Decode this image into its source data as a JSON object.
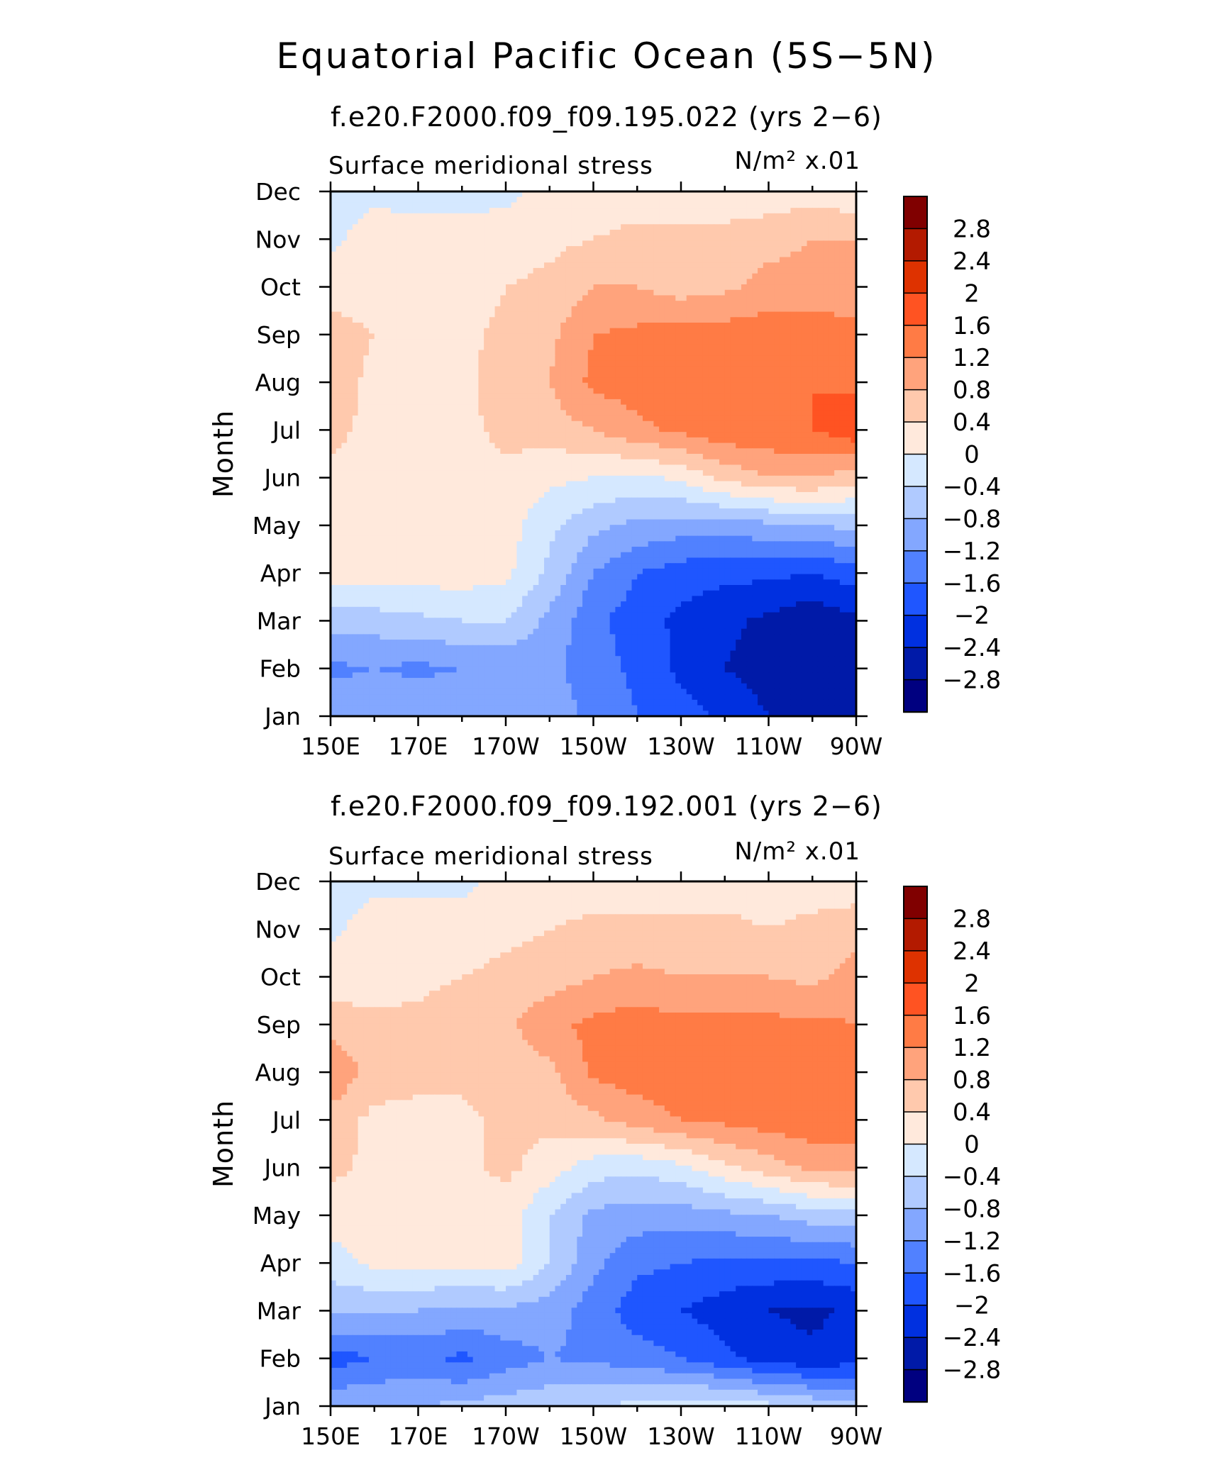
{
  "figure": {
    "title": "Equatorial Pacific Ocean (5S−5N)"
  },
  "colorbar": {
    "labels": [
      "2.8",
      "2.4",
      "2",
      "1.6",
      "1.2",
      "0.8",
      "0.4",
      "0",
      "−0.4",
      "−0.8",
      "−1.2",
      "−1.6",
      "−2",
      "−2.4",
      "−2.8"
    ],
    "colors": [
      "#800000",
      "#b31a00",
      "#de3200",
      "#ff5322",
      "#ff7b45",
      "#ffa37c",
      "#ffc9ad",
      "#ffe9dc",
      "#d5e8ff",
      "#b0caff",
      "#83a7ff",
      "#5181ff",
      "#1f56ff",
      "#0030e0",
      "#001aa8",
      "#000080"
    ]
  },
  "chart_data": [
    {
      "type": "heatmap",
      "title": "f.e20.F2000.f09_f09.195.022 (yrs 2−6)",
      "subtitle_left": "Surface meridional stress",
      "subtitle_right": "N/m² x.01",
      "xlabel": "",
      "ylabel": "Month",
      "x_ticks": [
        "150E",
        "170E",
        "170W",
        "150W",
        "130W",
        "110W",
        "90W"
      ],
      "y_ticks": [
        "Jan",
        "Feb",
        "Mar",
        "Apr",
        "May",
        "Jun",
        "Jul",
        "Aug",
        "Sep",
        "Oct",
        "Nov",
        "Dec"
      ],
      "x": [
        150,
        160,
        170,
        180,
        190,
        200,
        210,
        220,
        230,
        240,
        250,
        260,
        270
      ],
      "y": [
        "Jan",
        "Feb",
        "Mar",
        "Apr",
        "May",
        "Jun",
        "Jul",
        "Aug",
        "Sep",
        "Oct",
        "Nov",
        "Dec"
      ],
      "z": [
        [
          -0.9,
          -0.9,
          -0.8,
          -0.8,
          -0.8,
          -1.0,
          -1.3,
          -1.6,
          -1.8,
          -2.1,
          -2.4,
          -2.6,
          -2.6
        ],
        [
          -1.3,
          -1.2,
          -1.3,
          -1.2,
          -1.1,
          -1.1,
          -1.4,
          -1.7,
          -2.1,
          -2.4,
          -2.6,
          -2.8,
          -2.8
        ],
        [
          -0.6,
          -0.6,
          -0.5,
          -0.4,
          -0.4,
          -0.9,
          -1.5,
          -1.8,
          -2.1,
          -2.3,
          -2.5,
          -2.7,
          -2.5
        ],
        [
          0.2,
          0.2,
          0.2,
          0.2,
          0.1,
          -0.5,
          -1.2,
          -1.6,
          -1.8,
          -1.9,
          -1.9,
          -2.0,
          -1.8
        ],
        [
          0.2,
          0.2,
          0.2,
          0.2,
          0.2,
          -0.3,
          -0.7,
          -0.9,
          -1.0,
          -1.0,
          -0.9,
          -0.8,
          -0.7
        ],
        [
          0.3,
          0.2,
          0.2,
          0.2,
          0.3,
          0.1,
          0.0,
          -0.1,
          0.1,
          0.5,
          0.8,
          0.8,
          0.6
        ],
        [
          0.5,
          0.3,
          0.3,
          0.3,
          0.5,
          0.6,
          0.8,
          1.1,
          1.3,
          1.5,
          1.5,
          1.6,
          1.9
        ],
        [
          0.6,
          0.3,
          0.3,
          0.3,
          0.6,
          0.8,
          1.3,
          1.4,
          1.5,
          1.5,
          1.6,
          1.6,
          1.5
        ],
        [
          0.6,
          0.4,
          0.3,
          0.3,
          0.5,
          0.7,
          1.2,
          1.3,
          1.4,
          1.4,
          1.4,
          1.4,
          1.3
        ],
        [
          0.2,
          0.2,
          0.2,
          0.2,
          0.4,
          0.5,
          0.8,
          0.8,
          0.6,
          0.7,
          1.0,
          1.0,
          1.0
        ],
        [
          -0.1,
          0.2,
          0.2,
          0.2,
          0.2,
          0.3,
          0.4,
          0.5,
          0.5,
          0.5,
          0.6,
          0.8,
          0.8
        ],
        [
          -0.2,
          -0.1,
          -0.2,
          -0.2,
          -0.1,
          0.1,
          0.2,
          0.2,
          0.2,
          0.2,
          0.2,
          0.2,
          0.1
        ]
      ],
      "zlim": [
        -3.2,
        3.2
      ],
      "grid": false
    },
    {
      "type": "heatmap",
      "title": "f.e20.F2000.f09_f09.192.001 (yrs 2−6)",
      "subtitle_left": "Surface meridional stress",
      "subtitle_right": "N/m² x.01",
      "xlabel": "",
      "ylabel": "Month",
      "x_ticks": [
        "150E",
        "170E",
        "170W",
        "150W",
        "130W",
        "110W",
        "90W"
      ],
      "y_ticks": [
        "Jan",
        "Feb",
        "Mar",
        "Apr",
        "May",
        "Jun",
        "Jul",
        "Aug",
        "Sep",
        "Oct",
        "Nov",
        "Dec"
      ],
      "x": [
        150,
        160,
        170,
        180,
        190,
        200,
        210,
        220,
        230,
        240,
        250,
        260,
        270
      ],
      "y": [
        "Jan",
        "Feb",
        "Mar",
        "Apr",
        "May",
        "Jun",
        "Jul",
        "Aug",
        "Sep",
        "Oct",
        "Nov",
        "Dec"
      ],
      "z": [
        [
          -0.9,
          -0.8,
          -0.8,
          -0.7,
          -0.6,
          -0.5,
          -0.4,
          -0.3,
          -0.2,
          -0.1,
          -0.3,
          -0.5,
          -0.6
        ],
        [
          -1.8,
          -1.6,
          -1.5,
          -1.7,
          -1.4,
          -1.2,
          -1.3,
          -1.4,
          -1.6,
          -1.9,
          -2.2,
          -2.3,
          -2.2
        ],
        [
          -0.7,
          -0.8,
          -0.8,
          -0.9,
          -0.9,
          -1.0,
          -1.4,
          -1.8,
          -2.0,
          -2.2,
          -2.4,
          -2.5,
          -2.3
        ],
        [
          -0.2,
          0.1,
          0.1,
          0.1,
          0.2,
          -0.4,
          -1.1,
          -1.5,
          -1.6,
          -1.7,
          -1.7,
          -1.7,
          -1.6
        ],
        [
          0.2,
          0.2,
          0.2,
          0.2,
          0.2,
          -0.4,
          -0.9,
          -1.0,
          -1.0,
          -0.9,
          -0.8,
          -0.6,
          -0.5
        ],
        [
          0.5,
          0.3,
          0.3,
          0.3,
          0.5,
          0.2,
          -0.2,
          -0.3,
          -0.1,
          0.3,
          0.6,
          0.9,
          1.0
        ],
        [
          0.6,
          0.3,
          0.3,
          0.3,
          0.5,
          0.5,
          0.7,
          1.0,
          1.2,
          1.3,
          1.4,
          1.5,
          1.4
        ],
        [
          1.2,
          0.6,
          0.5,
          0.5,
          0.6,
          0.7,
          1.3,
          1.4,
          1.5,
          1.5,
          1.5,
          1.5,
          1.4
        ],
        [
          0.6,
          0.5,
          0.5,
          0.6,
          0.7,
          1.1,
          1.3,
          1.4,
          1.3,
          1.3,
          1.3,
          1.3,
          1.2
        ],
        [
          0.2,
          0.2,
          0.3,
          0.4,
          0.5,
          0.6,
          0.8,
          0.9,
          0.8,
          0.8,
          0.8,
          0.7,
          1.0
        ],
        [
          -0.1,
          0.2,
          0.2,
          0.2,
          0.3,
          0.4,
          0.5,
          0.5,
          0.5,
          0.5,
          0.4,
          0.5,
          0.6
        ],
        [
          -0.2,
          -0.1,
          -0.1,
          -0.1,
          0.1,
          0.1,
          0.2,
          0.2,
          0.2,
          0.2,
          0.2,
          0.2,
          0.2
        ]
      ],
      "zlim": [
        -3.2,
        3.2
      ],
      "grid": false
    }
  ]
}
